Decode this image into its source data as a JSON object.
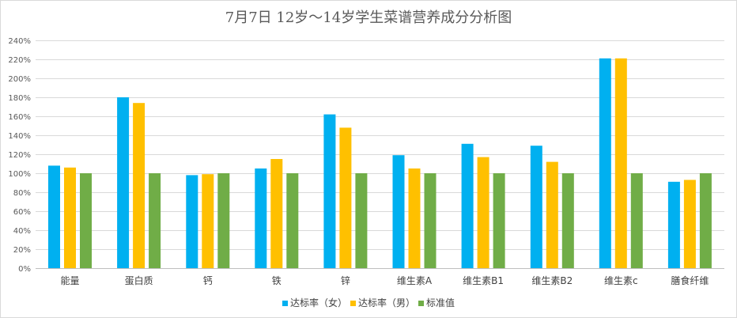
{
  "chart_data": {
    "type": "bar",
    "title": "7月7日 12岁～14岁学生菜谱营养成分分析图",
    "categories": [
      "能量",
      "蛋白质",
      "钙",
      "铁",
      "锌",
      "维生素A",
      "维生素B1",
      "维生素B2",
      "维生素c",
      "膳食纤维"
    ],
    "series": [
      {
        "name": "达标率（女）",
        "color": "#00b0f0",
        "values": [
          108,
          180,
          98,
          105,
          162,
          119,
          131,
          129,
          221,
          91
        ]
      },
      {
        "name": "达标率（男）",
        "color": "#ffc000",
        "values": [
          106,
          174,
          99,
          115,
          148,
          105,
          117,
          112,
          221,
          93
        ]
      },
      {
        "name": "标准值",
        "color": "#70ad47",
        "values": [
          100,
          100,
          100,
          100,
          100,
          100,
          100,
          100,
          100,
          100
        ]
      }
    ],
    "ylim": [
      0,
      240
    ],
    "ytick_step": 20,
    "ytick_suffix": "%",
    "grid": true,
    "legend": "bottom"
  }
}
